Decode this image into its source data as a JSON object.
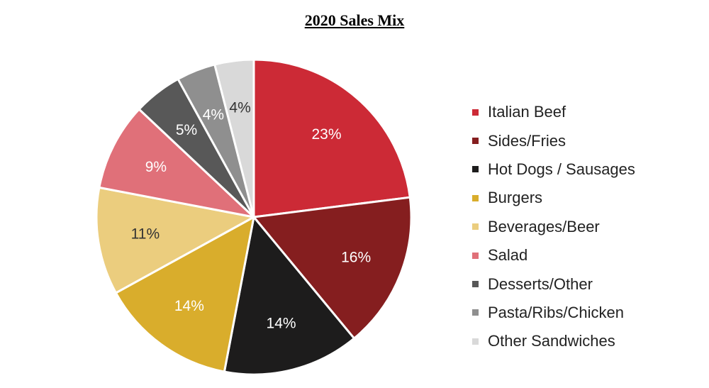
{
  "chart_data": {
    "type": "pie",
    "title": "2020 Sales Mix",
    "legend_position": "right",
    "slices": [
      {
        "name": "Italian Beef",
        "value": 23,
        "label": "23%",
        "color": "#cc2a36",
        "label_color": "#ffffff"
      },
      {
        "name": "Sides/Fries",
        "value": 16,
        "label": "16%",
        "color": "#851e1f",
        "label_color": "#ffffff"
      },
      {
        "name": "Hot Dogs / Sausages",
        "value": 14,
        "label": "14%",
        "color": "#1d1c1c",
        "label_color": "#ffffff"
      },
      {
        "name": "Burgers",
        "value": 14,
        "label": "14%",
        "color": "#d9ad2c",
        "label_color": "#ffffff"
      },
      {
        "name": "Beverages/Beer",
        "value": 11,
        "label": "11%",
        "color": "#ebcd7e",
        "label_color": "#333333"
      },
      {
        "name": "Salad",
        "value": 9,
        "label": "9%",
        "color": "#e07079",
        "label_color": "#ffffff"
      },
      {
        "name": "Desserts/Other",
        "value": 5,
        "label": "5%",
        "color": "#585858",
        "label_color": "#ffffff"
      },
      {
        "name": "Pasta/Ribs/Chicken",
        "value": 4,
        "label": "4%",
        "color": "#8f8f8f",
        "label_color": "#ffffff"
      },
      {
        "name": "Other Sandwiches",
        "value": 4,
        "label": "4%",
        "color": "#d9d9d9",
        "label_color": "#333333"
      }
    ]
  }
}
